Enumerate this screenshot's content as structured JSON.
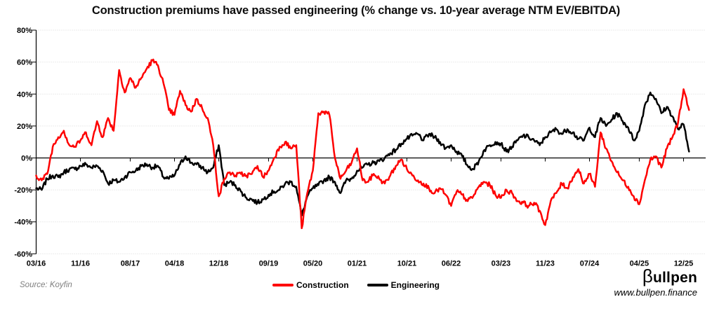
{
  "title": "Construction premiums have passed engineering (% change vs. 10-year average NTM EV/EBITDA)",
  "source": "Source: Koyfin",
  "legend": [
    {
      "label": "Construction",
      "color": "#fe0000"
    },
    {
      "label": "Engineering",
      "color": "#000000"
    }
  ],
  "branding": {
    "logo_beta": "β",
    "logo_rest": "ullpen",
    "url": "www.bullpen.finance"
  },
  "chart_data": {
    "type": "line",
    "title": "Construction premiums have passed engineering (% change vs. 10-year average NTM EV/EBITDA)",
    "ylabel": "% change vs. 10-year average NTM EV/EBITDA",
    "ylim": [
      -60,
      80
    ],
    "y_tick_labels": [
      "80%",
      "60%",
      "40%",
      "20%",
      "0%",
      "-20%",
      "-40%",
      "-60%"
    ],
    "y_tick_values": [
      80,
      60,
      40,
      20,
      0,
      -20,
      -40,
      -60
    ],
    "grid": "dotted-horizontal",
    "zero_axis": true,
    "legend_position": "bottom-center",
    "x_start": "2016-03",
    "x_end": "2026-01",
    "frequency": "monthly",
    "x_tick_labels": [
      "03/16",
      "11/16",
      "08/17",
      "04/18",
      "12/18",
      "09/19",
      "05/20",
      "01/21",
      "10/21",
      "06/22",
      "03/23",
      "11/23",
      "07/24",
      "04/25",
      "12/25"
    ],
    "x_tick_month_index": [
      0,
      8,
      17,
      25,
      33,
      42,
      50,
      58,
      67,
      75,
      84,
      92,
      100,
      109,
      117
    ],
    "series": [
      {
        "name": "Construction",
        "color": "#fe0000",
        "unit": "percent",
        "values": [
          -11,
          -14,
          -10,
          7,
          13,
          17,
          8,
          7,
          11,
          16,
          8,
          23,
          13,
          25,
          17,
          55,
          41,
          50,
          44,
          50,
          56,
          61,
          58,
          47,
          30,
          27,
          42,
          33,
          29,
          37,
          31,
          25,
          8,
          -24,
          -13,
          -9,
          -11,
          -10,
          -11,
          -10,
          -5,
          -12,
          -8,
          0,
          7,
          10,
          6,
          8,
          -44,
          -22,
          -8,
          28,
          29,
          27,
          0,
          -13,
          -8,
          -3,
          6,
          -14,
          -15,
          -10,
          -13,
          -16,
          -11,
          -5,
          -1,
          -7,
          -11,
          -14,
          -16,
          -19,
          -22,
          -19,
          -23,
          -30,
          -21,
          -23,
          -27,
          -24,
          -18,
          -15,
          -17,
          -23,
          -25,
          -20,
          -22,
          -27,
          -28,
          -30,
          -28,
          -33,
          -42,
          -27,
          -22,
          -16,
          -19,
          -12,
          -7,
          -16,
          -10,
          -18,
          16,
          6,
          -2,
          -9,
          -14,
          -18,
          -24,
          -29,
          -14,
          -1,
          1,
          -6,
          6,
          13,
          22,
          43,
          30
        ]
      },
      {
        "name": "Engineering",
        "color": "#000000",
        "unit": "percent",
        "values": [
          -19,
          -20,
          -13,
          -11,
          -12,
          -9,
          -7,
          -7,
          -5,
          -4,
          -6,
          -5,
          -8,
          -16,
          -14,
          -15,
          -12,
          -9,
          -8,
          -5,
          -4,
          -6,
          -5,
          -12,
          -13,
          -11,
          -4,
          1,
          -3,
          -4,
          -6,
          -9,
          -6,
          8,
          -17,
          -15,
          -17,
          -21,
          -25,
          -26,
          -28,
          -26,
          -23,
          -21,
          -20,
          -16,
          -15,
          -18,
          -36,
          -24,
          -19,
          -17,
          -14,
          -12,
          -15,
          -22,
          -14,
          -13,
          -8,
          -6,
          -4,
          -3,
          -2,
          0,
          3,
          5,
          9,
          12,
          14,
          15,
          11,
          15,
          13,
          10,
          6,
          8,
          4,
          1,
          -5,
          -7,
          -2,
          5,
          8,
          10,
          9,
          4,
          7,
          11,
          14,
          13,
          11,
          8,
          13,
          16,
          18,
          15,
          18,
          16,
          12,
          11,
          19,
          13,
          25,
          20,
          24,
          28,
          23,
          19,
          11,
          17,
          33,
          41,
          37,
          28,
          32,
          26,
          18,
          21,
          4
        ]
      }
    ]
  }
}
